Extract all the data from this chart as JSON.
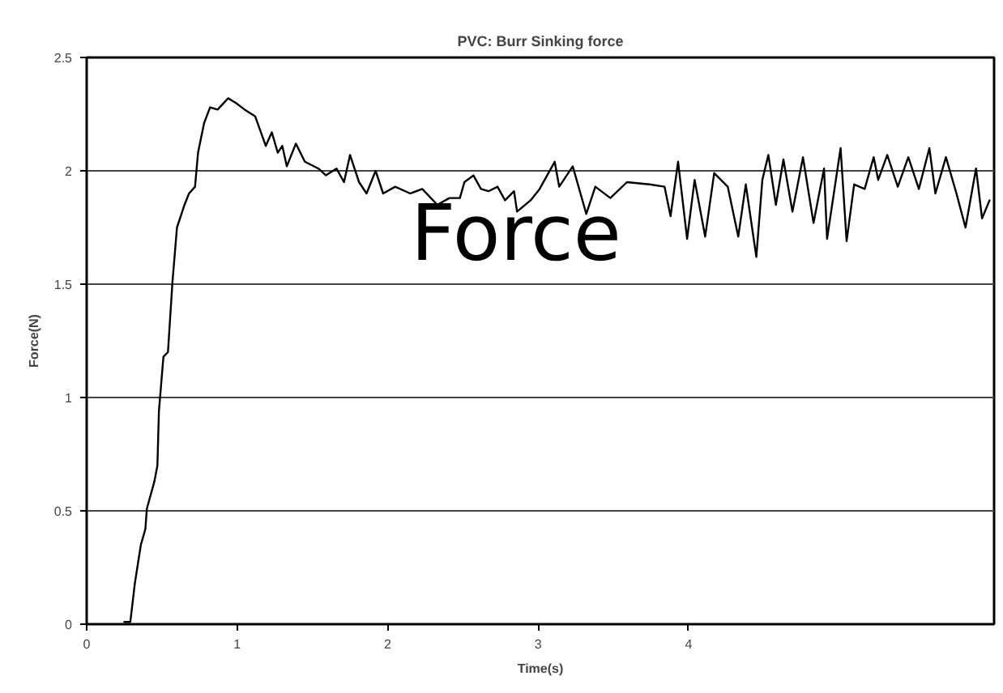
{
  "chart_data": {
    "type": "line",
    "title": "PVC: Burr Sinking force",
    "xlabel": "Time(s)",
    "ylabel": "Force(N)",
    "annotations": [
      "Force"
    ],
    "x": [
      0.25,
      0.29,
      0.32,
      0.36,
      0.39,
      0.4,
      0.45,
      0.47,
      0.48,
      0.51,
      0.54,
      0.57,
      0.6,
      0.65,
      0.68,
      0.72,
      0.74,
      0.78,
      0.82,
      0.87,
      0.94,
      0.99,
      1.05,
      1.12,
      1.19,
      1.23,
      1.27,
      1.3,
      1.33,
      1.39,
      1.45,
      1.54,
      1.59,
      1.66,
      1.71,
      1.75,
      1.81,
      1.86,
      1.92,
      1.97,
      2.05,
      2.15,
      2.23,
      2.33,
      2.41,
      2.48,
      2.51,
      2.57,
      2.62,
      2.67,
      2.73,
      2.78,
      2.84,
      2.86,
      2.95,
      3.01,
      3.11,
      3.14,
      3.23,
      3.32,
      3.38,
      3.48,
      3.59,
      3.74,
      3.84,
      3.88,
      3.93,
      3.99,
      4.04,
      4.11,
      4.17,
      4.26,
      4.33,
      4.38,
      4.45,
      4.49,
      4.53,
      4.58,
      4.63,
      4.69,
      4.76,
      4.83,
      4.9,
      4.92,
      5.01,
      5.05,
      5.1,
      5.17,
      5.23,
      5.26,
      5.32,
      5.39,
      5.46,
      5.53,
      5.6,
      5.64,
      5.71,
      5.78,
      5.84,
      5.91,
      5.95,
      6.0
    ],
    "series": [
      {
        "color": "#000000",
        "values": [
          0.01,
          0.01,
          0.18,
          0.35,
          0.42,
          0.51,
          0.63,
          0.7,
          0.94,
          1.18,
          1.2,
          1.51,
          1.75,
          1.85,
          1.9,
          1.93,
          2.08,
          2.21,
          2.28,
          2.27,
          2.32,
          2.3,
          2.27,
          2.24,
          2.11,
          2.17,
          2.08,
          2.11,
          2.02,
          2.12,
          2.04,
          2.01,
          1.98,
          2.01,
          1.95,
          2.07,
          1.95,
          1.9,
          2.0,
          1.9,
          1.93,
          1.9,
          1.92,
          1.85,
          1.88,
          1.88,
          1.95,
          1.98,
          1.92,
          1.91,
          1.93,
          1.87,
          1.91,
          1.82,
          1.87,
          1.92,
          2.04,
          1.93,
          2.02,
          1.81,
          1.93,
          1.88,
          1.95,
          1.94,
          1.93,
          1.8,
          2.04,
          1.7,
          1.96,
          1.71,
          1.99,
          1.93,
          1.71,
          1.94,
          1.62,
          1.96,
          2.07,
          1.85,
          2.05,
          1.82,
          2.06,
          1.77,
          2.01,
          1.7,
          2.1,
          1.69,
          1.94,
          1.92,
          2.06,
          1.96,
          2.07,
          1.93,
          2.06,
          1.92,
          2.1,
          1.9,
          2.06,
          1.9,
          1.75,
          2.01,
          1.79,
          1.87
        ]
      }
    ],
    "xlim": [
      0,
      6.03
    ],
    "ylim": [
      0,
      2.5
    ],
    "xticks": [
      0,
      1,
      2,
      3,
      4
    ],
    "yticks": [
      0,
      0.5,
      1,
      1.5,
      2,
      2.5
    ],
    "grid": "y"
  }
}
